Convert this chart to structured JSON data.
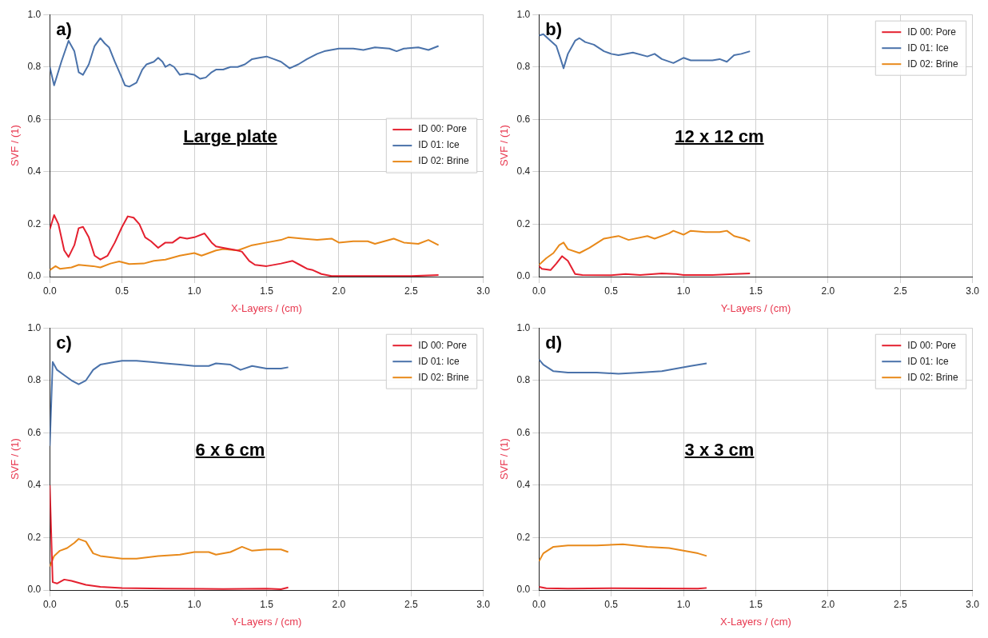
{
  "chart_data": [
    {
      "type": "line",
      "annotations": [
        "a)",
        "Large plate"
      ],
      "xlabel": "X-Layers / (cm)",
      "ylabel": "SVF / (1)",
      "xlim": [
        0,
        3
      ],
      "ylim": [
        0,
        1
      ],
      "xticks": [
        {
          "value": 0,
          "label": "0.0"
        },
        {
          "value": 0.5,
          "label": "0.5"
        },
        {
          "value": 1,
          "label": "1.0"
        },
        {
          "value": 1.5,
          "label": "1.5"
        },
        {
          "value": 2,
          "label": "2.0"
        },
        {
          "value": 2.5,
          "label": "2.5"
        },
        {
          "value": 3,
          "label": "3.0"
        }
      ],
      "yticks": [
        {
          "value": 0,
          "label": "0.0"
        },
        {
          "value": 0.2,
          "label": "0.2"
        },
        {
          "value": 0.4,
          "label": "0.4"
        },
        {
          "value": 0.6,
          "label": "0.6"
        },
        {
          "value": 0.8,
          "label": "0.8"
        },
        {
          "value": 1,
          "label": "1.0"
        }
      ],
      "grid": true,
      "legend": "center right",
      "series": [
        {
          "name": "ID 00: Pore",
          "color": "#e4202f",
          "x": [
            0,
            0.03,
            0.06,
            0.1,
            0.13,
            0.17,
            0.2,
            0.23,
            0.27,
            0.31,
            0.35,
            0.4,
            0.45,
            0.5,
            0.54,
            0.58,
            0.62,
            0.66,
            0.7,
            0.75,
            0.8,
            0.85,
            0.9,
            0.95,
            1.0,
            1.07,
            1.12,
            1.15,
            1.2,
            1.3,
            1.33,
            1.38,
            1.42,
            1.5,
            1.6,
            1.68,
            1.73,
            1.78,
            1.82,
            1.88,
            1.95,
            2.2,
            2.5,
            2.69
          ],
          "values": [
            0.18,
            0.235,
            0.2,
            0.1,
            0.075,
            0.12,
            0.185,
            0.19,
            0.15,
            0.08,
            0.065,
            0.08,
            0.13,
            0.19,
            0.23,
            0.225,
            0.2,
            0.15,
            0.135,
            0.11,
            0.13,
            0.13,
            0.15,
            0.145,
            0.15,
            0.165,
            0.13,
            0.115,
            0.11,
            0.1,
            0.095,
            0.06,
            0.045,
            0.04,
            0.05,
            0.06,
            0.045,
            0.03,
            0.025,
            0.01,
            0.002,
            0.002,
            0.002,
            0.006
          ]
        },
        {
          "name": "ID 01: Ice",
          "color": "#4a72aa",
          "x": [
            0,
            0.03,
            0.08,
            0.13,
            0.17,
            0.2,
            0.23,
            0.27,
            0.31,
            0.35,
            0.38,
            0.41,
            0.45,
            0.49,
            0.52,
            0.55,
            0.6,
            0.64,
            0.67,
            0.72,
            0.75,
            0.78,
            0.8,
            0.83,
            0.86,
            0.9,
            0.95,
            1.0,
            1.04,
            1.08,
            1.12,
            1.15,
            1.2,
            1.25,
            1.3,
            1.35,
            1.4,
            1.45,
            1.5,
            1.55,
            1.6,
            1.66,
            1.72,
            1.78,
            1.85,
            1.9,
            2.0,
            2.1,
            2.17,
            2.25,
            2.35,
            2.4,
            2.45,
            2.55,
            2.62,
            2.69
          ],
          "values": [
            0.8,
            0.73,
            0.82,
            0.9,
            0.86,
            0.78,
            0.77,
            0.81,
            0.88,
            0.91,
            0.89,
            0.875,
            0.82,
            0.77,
            0.73,
            0.725,
            0.74,
            0.79,
            0.81,
            0.82,
            0.835,
            0.82,
            0.8,
            0.81,
            0.8,
            0.77,
            0.775,
            0.77,
            0.755,
            0.76,
            0.78,
            0.79,
            0.79,
            0.8,
            0.8,
            0.81,
            0.83,
            0.835,
            0.84,
            0.83,
            0.82,
            0.795,
            0.81,
            0.83,
            0.85,
            0.86,
            0.87,
            0.87,
            0.865,
            0.875,
            0.87,
            0.86,
            0.87,
            0.875,
            0.865,
            0.88
          ]
        },
        {
          "name": "ID 02: Brine",
          "color": "#e8891a",
          "x": [
            0,
            0.04,
            0.07,
            0.15,
            0.2,
            0.3,
            0.35,
            0.42,
            0.48,
            0.55,
            0.65,
            0.72,
            0.8,
            0.9,
            1.0,
            1.05,
            1.15,
            1.2,
            1.3,
            1.4,
            1.5,
            1.6,
            1.65,
            1.75,
            1.85,
            1.95,
            2.0,
            2.1,
            2.2,
            2.25,
            2.38,
            2.45,
            2.55,
            2.62,
            2.69
          ],
          "values": [
            0.025,
            0.04,
            0.03,
            0.035,
            0.045,
            0.04,
            0.035,
            0.05,
            0.058,
            0.048,
            0.05,
            0.06,
            0.065,
            0.08,
            0.09,
            0.08,
            0.1,
            0.105,
            0.1,
            0.12,
            0.13,
            0.14,
            0.15,
            0.145,
            0.14,
            0.145,
            0.13,
            0.135,
            0.135,
            0.125,
            0.145,
            0.13,
            0.125,
            0.14,
            0.12
          ]
        }
      ]
    },
    {
      "type": "line",
      "annotations": [
        "b)",
        "12 x 12 cm"
      ],
      "xlabel": "Y-Layers / (cm)",
      "ylabel": "SVF / (1)",
      "xlim": [
        0,
        3
      ],
      "ylim": [
        0,
        1
      ],
      "xticks": [
        {
          "value": 0,
          "label": "0.0"
        },
        {
          "value": 0.5,
          "label": "0.5"
        },
        {
          "value": 1,
          "label": "1.0"
        },
        {
          "value": 1.5,
          "label": "1.5"
        },
        {
          "value": 2,
          "label": "2.0"
        },
        {
          "value": 2.5,
          "label": "2.5"
        },
        {
          "value": 3,
          "label": "3.0"
        }
      ],
      "yticks": [
        {
          "value": 0,
          "label": "0.0"
        },
        {
          "value": 0.2,
          "label": "0.2"
        },
        {
          "value": 0.4,
          "label": "0.4"
        },
        {
          "value": 0.6,
          "label": "0.6"
        },
        {
          "value": 0.8,
          "label": "0.8"
        },
        {
          "value": 1,
          "label": "1.0"
        }
      ],
      "grid": true,
      "legend": "top right",
      "series": [
        {
          "name": "ID 00: Pore",
          "color": "#e4202f",
          "x": [
            0,
            0.02,
            0.08,
            0.12,
            0.16,
            0.2,
            0.25,
            0.3,
            0.5,
            0.6,
            0.7,
            0.85,
            0.95,
            1.0,
            1.2,
            1.35,
            1.46
          ],
          "values": [
            0.04,
            0.03,
            0.025,
            0.05,
            0.078,
            0.06,
            0.01,
            0.006,
            0.005,
            0.01,
            0.006,
            0.012,
            0.01,
            0.006,
            0.006,
            0.01,
            0.012
          ]
        },
        {
          "name": "ID 01: Ice",
          "color": "#4a72aa",
          "x": [
            0,
            0.03,
            0.08,
            0.12,
            0.15,
            0.17,
            0.2,
            0.25,
            0.28,
            0.32,
            0.38,
            0.45,
            0.5,
            0.55,
            0.65,
            0.75,
            0.8,
            0.85,
            0.93,
            1.0,
            1.05,
            1.1,
            1.2,
            1.25,
            1.3,
            1.35,
            1.4,
            1.46
          ],
          "values": [
            0.92,
            0.925,
            0.9,
            0.88,
            0.83,
            0.795,
            0.85,
            0.9,
            0.91,
            0.895,
            0.885,
            0.86,
            0.85,
            0.845,
            0.855,
            0.84,
            0.85,
            0.83,
            0.815,
            0.835,
            0.825,
            0.825,
            0.825,
            0.83,
            0.82,
            0.845,
            0.85,
            0.86
          ]
        },
        {
          "name": "ID 02: Brine",
          "color": "#e8891a",
          "x": [
            0,
            0.05,
            0.1,
            0.14,
            0.17,
            0.2,
            0.28,
            0.35,
            0.45,
            0.55,
            0.62,
            0.75,
            0.8,
            0.9,
            0.93,
            1.0,
            1.05,
            1.15,
            1.25,
            1.3,
            1.35,
            1.42,
            1.46
          ],
          "values": [
            0.045,
            0.07,
            0.09,
            0.12,
            0.13,
            0.105,
            0.09,
            0.11,
            0.145,
            0.155,
            0.14,
            0.155,
            0.145,
            0.165,
            0.175,
            0.16,
            0.175,
            0.17,
            0.17,
            0.175,
            0.155,
            0.145,
            0.135
          ]
        }
      ]
    },
    {
      "type": "line",
      "annotations": [
        "c)",
        "6 x 6 cm"
      ],
      "xlabel": "Y-Layers / (cm)",
      "ylabel": "SVF / (1)",
      "xlim": [
        0,
        3
      ],
      "ylim": [
        0,
        1
      ],
      "xticks": [
        {
          "value": 0,
          "label": "0.0"
        },
        {
          "value": 0.5,
          "label": "0.5"
        },
        {
          "value": 1,
          "label": "1.0"
        },
        {
          "value": 1.5,
          "label": "1.5"
        },
        {
          "value": 2,
          "label": "2.0"
        },
        {
          "value": 2.5,
          "label": "2.5"
        },
        {
          "value": 3,
          "label": "3.0"
        }
      ],
      "yticks": [
        {
          "value": 0,
          "label": "0.0"
        },
        {
          "value": 0.2,
          "label": "0.2"
        },
        {
          "value": 0.4,
          "label": "0.4"
        },
        {
          "value": 0.6,
          "label": "0.6"
        },
        {
          "value": 0.8,
          "label": "0.8"
        },
        {
          "value": 1,
          "label": "1.0"
        }
      ],
      "grid": true,
      "legend": "top right",
      "series": [
        {
          "name": "ID 00: Pore",
          "color": "#e4202f",
          "x": [
            0,
            0.02,
            0.05,
            0.1,
            0.15,
            0.25,
            0.35,
            0.5,
            0.8,
            1.2,
            1.5,
            1.6,
            1.65
          ],
          "values": [
            0.4,
            0.03,
            0.025,
            0.04,
            0.035,
            0.02,
            0.012,
            0.008,
            0.005,
            0.004,
            0.005,
            0.003,
            0.01
          ]
        },
        {
          "name": "ID 01: Ice",
          "color": "#4a72aa",
          "x": [
            0,
            0.02,
            0.05,
            0.1,
            0.15,
            0.2,
            0.25,
            0.3,
            0.35,
            0.45,
            0.5,
            0.6,
            0.7,
            0.8,
            0.9,
            1.0,
            1.1,
            1.15,
            1.25,
            1.32,
            1.4,
            1.5,
            1.6,
            1.65
          ],
          "values": [
            0.55,
            0.87,
            0.84,
            0.82,
            0.8,
            0.785,
            0.8,
            0.84,
            0.86,
            0.87,
            0.875,
            0.875,
            0.87,
            0.865,
            0.86,
            0.855,
            0.855,
            0.865,
            0.86,
            0.84,
            0.855,
            0.845,
            0.845,
            0.85
          ]
        },
        {
          "name": "ID 02: Brine",
          "color": "#e8891a",
          "x": [
            0,
            0.03,
            0.07,
            0.12,
            0.17,
            0.2,
            0.25,
            0.3,
            0.35,
            0.5,
            0.6,
            0.75,
            0.9,
            1.0,
            1.1,
            1.15,
            1.25,
            1.33,
            1.4,
            1.5,
            1.6,
            1.65
          ],
          "values": [
            0.09,
            0.13,
            0.15,
            0.16,
            0.18,
            0.195,
            0.185,
            0.14,
            0.13,
            0.12,
            0.12,
            0.13,
            0.135,
            0.145,
            0.145,
            0.135,
            0.145,
            0.165,
            0.15,
            0.155,
            0.155,
            0.145
          ]
        }
      ]
    },
    {
      "type": "line",
      "annotations": [
        "d)",
        "3 x 3 cm"
      ],
      "xlabel": "X-Layers / (cm)",
      "ylabel": "SVF / (1)",
      "xlim": [
        0,
        3
      ],
      "ylim": [
        0,
        1
      ],
      "xticks": [
        {
          "value": 0,
          "label": "0.0"
        },
        {
          "value": 0.5,
          "label": "0.5"
        },
        {
          "value": 1,
          "label": "1.0"
        },
        {
          "value": 1.5,
          "label": "1.5"
        },
        {
          "value": 2,
          "label": "2.0"
        },
        {
          "value": 2.5,
          "label": "2.5"
        },
        {
          "value": 3,
          "label": "3.0"
        }
      ],
      "yticks": [
        {
          "value": 0,
          "label": "0.0"
        },
        {
          "value": 0.2,
          "label": "0.2"
        },
        {
          "value": 0.4,
          "label": "0.4"
        },
        {
          "value": 0.6,
          "label": "0.6"
        },
        {
          "value": 0.8,
          "label": "0.8"
        },
        {
          "value": 1,
          "label": "1.0"
        }
      ],
      "grid": true,
      "legend": "top right",
      "series": [
        {
          "name": "ID 00: Pore",
          "color": "#e4202f",
          "x": [
            0,
            0.05,
            0.2,
            0.5,
            0.8,
            1.1,
            1.16
          ],
          "values": [
            0.012,
            0.007,
            0.005,
            0.007,
            0.006,
            0.005,
            0.008
          ]
        },
        {
          "name": "ID 01: Ice",
          "color": "#4a72aa",
          "x": [
            0,
            0.03,
            0.1,
            0.2,
            0.4,
            0.55,
            0.7,
            0.85,
            0.95,
            1.05,
            1.16
          ],
          "values": [
            0.88,
            0.86,
            0.835,
            0.83,
            0.83,
            0.825,
            0.83,
            0.835,
            0.845,
            0.855,
            0.865
          ]
        },
        {
          "name": "ID 02: Brine",
          "color": "#e8891a",
          "x": [
            0,
            0.03,
            0.1,
            0.2,
            0.4,
            0.58,
            0.75,
            0.9,
            1.0,
            1.1,
            1.16
          ],
          "values": [
            0.11,
            0.14,
            0.165,
            0.17,
            0.17,
            0.175,
            0.165,
            0.16,
            0.15,
            0.14,
            0.13
          ]
        }
      ]
    }
  ]
}
